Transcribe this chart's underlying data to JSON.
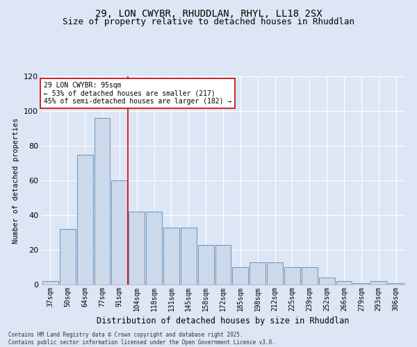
{
  "title": "29, LON CWYBR, RHUDDLAN, RHYL, LL18 2SX",
  "subtitle": "Size of property relative to detached houses in Rhuddlan",
  "xlabel": "Distribution of detached houses by size in Rhuddlan",
  "ylabel": "Number of detached properties",
  "categories": [
    "37sqm",
    "50sqm",
    "64sqm",
    "77sqm",
    "91sqm",
    "104sqm",
    "118sqm",
    "131sqm",
    "145sqm",
    "158sqm",
    "172sqm",
    "185sqm",
    "198sqm",
    "212sqm",
    "225sqm",
    "239sqm",
    "252sqm",
    "266sqm",
    "279sqm",
    "293sqm",
    "306sqm"
  ],
  "bar_values": [
    2,
    32,
    75,
    96,
    60,
    42,
    42,
    33,
    33,
    23,
    23,
    10,
    13,
    13,
    10,
    10,
    4,
    2,
    1,
    2,
    1
  ],
  "ylim": [
    0,
    120
  ],
  "yticks": [
    0,
    20,
    40,
    60,
    80,
    100,
    120
  ],
  "bar_color": "#ccd9ea",
  "bar_edge_color": "#5a85b0",
  "vline_x": 4.5,
  "vline_color": "#cc0000",
  "annotation_text": "29 LON CWYBR: 95sqm\n← 53% of detached houses are smaller (217)\n45% of semi-detached houses are larger (182) →",
  "annotation_box_color": "#ffffff",
  "annotation_box_edge": "#cc0000",
  "background_color": "#dce6f5",
  "plot_bg_color": "#dce6f5",
  "footer_line1": "Contains HM Land Registry data © Crown copyright and database right 2025.",
  "footer_line2": "Contains public sector information licensed under the Open Government Licence v3.0.",
  "title_fontsize": 10,
  "subtitle_fontsize": 9,
  "tick_fontsize": 7,
  "xlabel_fontsize": 8.5,
  "ylabel_fontsize": 7.5,
  "annotation_fontsize": 7,
  "footer_fontsize": 5.5
}
